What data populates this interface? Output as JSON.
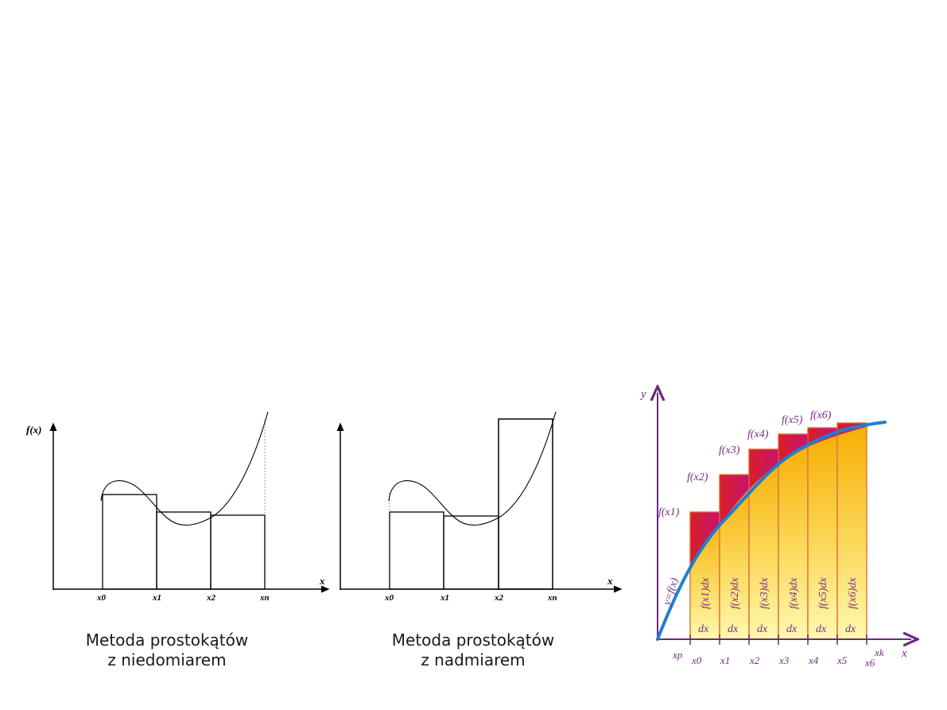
{
  "diagram_left": {
    "ylabel": "f(x)",
    "xlabel": "x",
    "ticks": [
      "x0",
      "x1",
      "x2",
      "xn"
    ],
    "caption_line1": "Metoda prostokątów",
    "caption_line2": "z niedomiarem"
  },
  "diagram_middle": {
    "xlabel": "x",
    "ticks": [
      "x0",
      "x1",
      "x2",
      "xn"
    ],
    "caption_line1": "Metoda prostokątów",
    "caption_line2": "z nadmiarem"
  },
  "diagram_right": {
    "ylabel": "y",
    "xlabel": "x",
    "curve_label": "y=f(x)",
    "axis_labels": [
      "xp",
      "x0",
      "x1",
      "x2",
      "x3",
      "x4",
      "x5",
      "x6",
      "xk"
    ],
    "value_labels": [
      "f(x1)",
      "f(x2)",
      "f(x3)",
      "f(x4)",
      "f(x5)",
      "f(x6)"
    ],
    "strip_labels": [
      "f(x1)dx",
      "f(x2)dx",
      "f(x3)dx",
      "f(x4)dx",
      "f(x5)dx",
      "f(x6)dx"
    ],
    "dx_label": "dx",
    "colors": {
      "curve": "#1e7fd0",
      "axis": "#6a2a7a",
      "fill_top": "#f7b500",
      "fill_bottom": "#fff7a8",
      "excess": "#d81e2a",
      "outline": "#e07a3a"
    }
  }
}
